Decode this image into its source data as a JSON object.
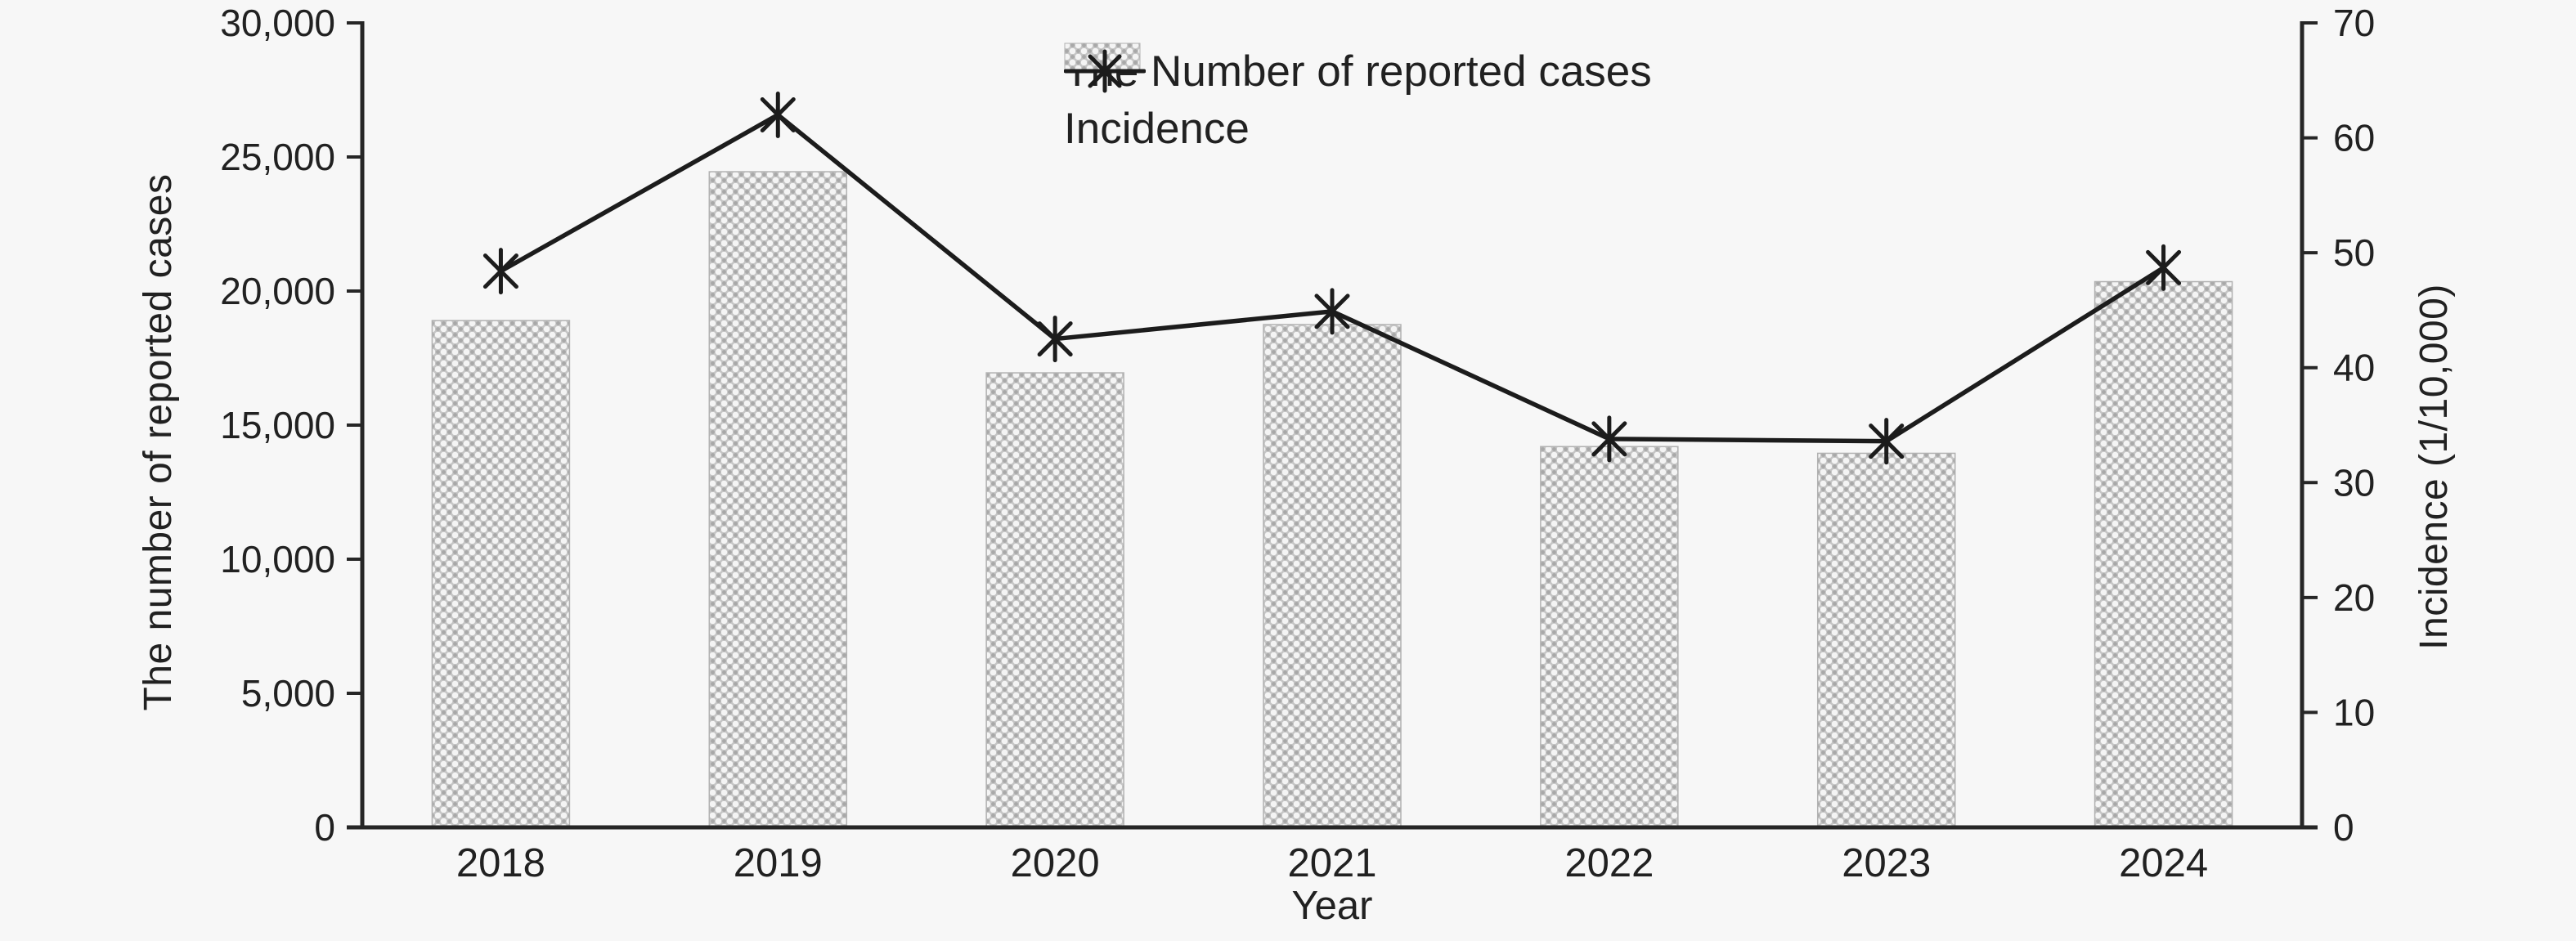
{
  "chart_data": {
    "type": "bar",
    "subtype": "bar+line-dual-axis",
    "title": "",
    "categories": [
      "2018",
      "2019",
      "2020",
      "2021",
      "2022",
      "2023",
      "2024"
    ],
    "series": [
      {
        "name": "The Number of reported cases",
        "type": "bar",
        "axis": "left",
        "values": [
          18900,
          24450,
          16950,
          18750,
          14200,
          13950,
          20350
        ]
      },
      {
        "name": "Incidence",
        "type": "line",
        "marker": "asterisk",
        "axis": "right",
        "values": [
          48.4,
          62.0,
          42.5,
          44.9,
          33.8,
          33.6,
          48.7
        ]
      }
    ],
    "x_axis": {
      "label": "Year"
    },
    "y_axis_left": {
      "label": "The number of reported cases",
      "min": 0,
      "max": 30000,
      "tick_step": 5000,
      "tick_labels": [
        "0",
        "5,000",
        "10,000",
        "15,000",
        "20,000",
        "25,000",
        "30,000"
      ]
    },
    "y_axis_right": {
      "label": "Incidence (1/10,000)",
      "min": 0,
      "max": 70,
      "tick_step": 10,
      "tick_labels": [
        "0",
        "10",
        "20",
        "30",
        "40",
        "50",
        "60",
        "70"
      ]
    },
    "legend": {
      "position": "top-center",
      "items": [
        "The Number of reported cases",
        "Incidence"
      ]
    },
    "grid": false
  },
  "colors": {
    "background": "#f7f7f7",
    "text": "#212121",
    "axis": "#262626",
    "line": "#1c1c1c",
    "bar_pattern_base": "#c5c5c5",
    "bar_pattern_dot": "#f4f4f4",
    "bar_pattern_dark": "#a8a8a8",
    "bar_outline": "#b2b2b2"
  }
}
